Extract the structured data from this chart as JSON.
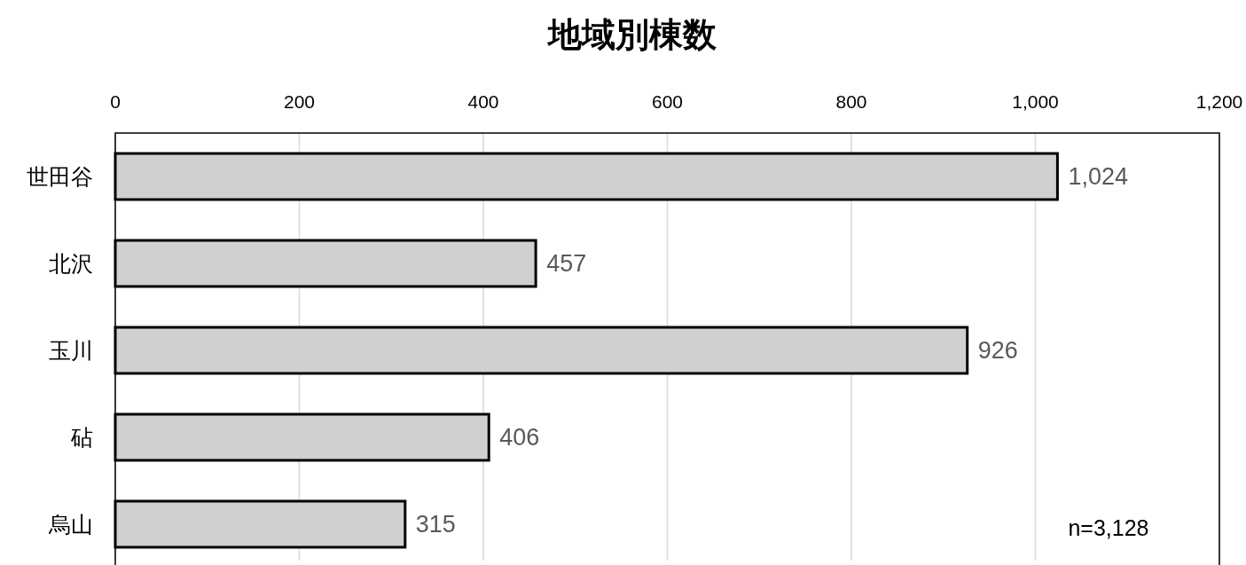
{
  "chart_data": {
    "type": "bar",
    "orientation": "horizontal",
    "title": "地域別棟数",
    "categories": [
      "世田谷",
      "北沢",
      "玉川",
      "砧",
      "烏山"
    ],
    "values": [
      1024,
      457,
      926,
      406,
      315
    ],
    "value_labels": [
      "1,024",
      "457",
      "926",
      "406",
      "315"
    ],
    "color": "#d0d0d0",
    "xlim": [
      0,
      1200
    ],
    "xticks": [
      0,
      200,
      400,
      600,
      800,
      {
        "value": 1000,
        "label": "1,000"
      },
      {
        "value": 1200,
        "label": "1,200"
      }
    ],
    "grid": "x",
    "annotations": [
      "n=3,128"
    ]
  }
}
